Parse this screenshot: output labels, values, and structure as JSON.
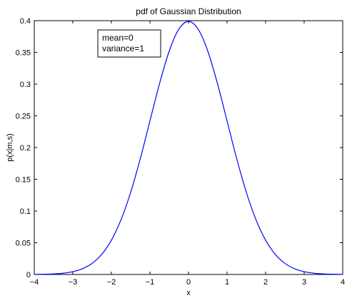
{
  "chart_data": {
    "type": "line",
    "title": "pdf of Gaussian Distribution",
    "xlabel": "x",
    "ylabel": "p(x|m,s)",
    "xlim": [
      -4,
      4
    ],
    "ylim": [
      0,
      0.4
    ],
    "xticks": [
      -4,
      -3,
      -2,
      -1,
      0,
      1,
      2,
      3,
      4
    ],
    "xtick_labels": [
      "−4",
      "−3",
      "−2",
      "−1",
      "0",
      "1",
      "2",
      "3",
      "4"
    ],
    "yticks": [
      0,
      0.05,
      0.1,
      0.15,
      0.2,
      0.25,
      0.3,
      0.35,
      0.4
    ],
    "ytick_labels": [
      "0",
      "0.05",
      "0.1",
      "0.15",
      "0.2",
      "0.25",
      "0.3",
      "0.35",
      "0.4"
    ],
    "grid": false,
    "legend": {
      "placement": "top-left",
      "lines": [
        "mean=0",
        "variance=1"
      ]
    },
    "series": [
      {
        "color": "#0000ff",
        "x": [
          -4,
          -3.75,
          -3.5,
          -3.25,
          -3,
          -2.75,
          -2.5,
          -2.25,
          -2,
          -1.75,
          -1.5,
          -1.25,
          -1,
          -0.75,
          -0.5,
          -0.25,
          0,
          0.25,
          0.5,
          0.75,
          1,
          1.25,
          1.5,
          1.75,
          2,
          2.25,
          2.5,
          2.75,
          3,
          3.25,
          3.5,
          3.75,
          4
        ],
        "y": [
          0.0001,
          0.0004,
          0.0009,
          0.002,
          0.0044,
          0.0091,
          0.0175,
          0.0317,
          0.054,
          0.0863,
          0.1295,
          0.1826,
          0.242,
          0.3011,
          0.3521,
          0.3867,
          0.3989,
          0.3867,
          0.3521,
          0.3011,
          0.242,
          0.1826,
          0.1295,
          0.0863,
          0.054,
          0.0317,
          0.0175,
          0.0091,
          0.0044,
          0.002,
          0.0009,
          0.0004,
          0.0001
        ]
      }
    ]
  }
}
